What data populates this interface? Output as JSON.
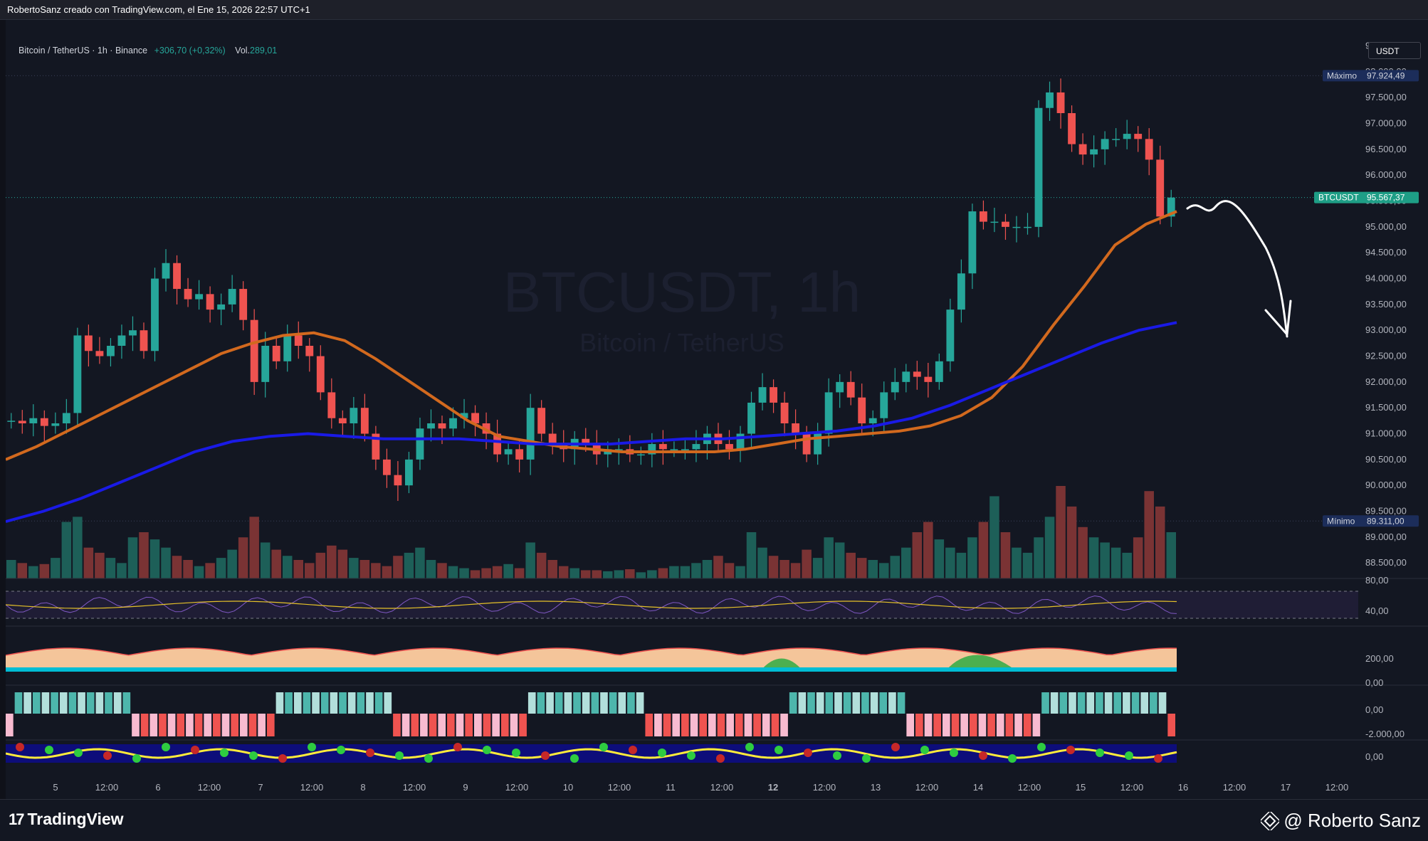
{
  "header": {
    "credit": "RobertoSanz creado con TradingView.com, el Ene 15, 2026 22:57 UTC+1"
  },
  "legend": {
    "symbol": "Bitcoin / TetherUS · 1h · Binance",
    "change": "+306,70 (+0,32%)",
    "volume_label": "Vol.",
    "volume_value": "289,01"
  },
  "currency": "USDT",
  "watermark": {
    "title": "BTCUSDT, 1h",
    "subtitle": "Bitcoin / TetherUS"
  },
  "footer": {
    "brand": "TradingView",
    "author": "@ Roberto Sanz"
  },
  "colors": {
    "up": "#26a69a",
    "down": "#ef5350",
    "ema_orange": "#d2691e",
    "ma_blue": "#1a1ae6",
    "background": "#131722"
  },
  "chart_data": {
    "type": "candlestick",
    "timeframe": "1h",
    "price_axis": {
      "ticks": [
        "98.500,00",
        "98.000,00",
        "97.500,00",
        "97.000,00",
        "96.500,00",
        "96.000,00",
        "95.500,00",
        "95.000,00",
        "94.500,00",
        "94.000,00",
        "93.500,00",
        "93.000,00",
        "92.500,00",
        "92.000,00",
        "91.500,00",
        "91.000,00",
        "90.500,00",
        "90.000,00",
        "89.500,00",
        "89.000,00",
        "88.500,00"
      ],
      "range": [
        88200,
        98700
      ]
    },
    "time_axis": {
      "ticks": [
        "5",
        "12:00",
        "6",
        "12:00",
        "7",
        "12:00",
        "8",
        "12:00",
        "9",
        "12:00",
        "10",
        "12:00",
        "11",
        "12:00",
        "12",
        "12:00",
        "13",
        "12:00",
        "14",
        "12:00",
        "15",
        "12:00",
        "16",
        "12:00",
        "17",
        "12:00"
      ]
    },
    "markers": {
      "max_label": "Máximo",
      "max_value": "97.924,49",
      "max": 97924.49,
      "min_label": "Mínimo",
      "min_value": "89.311,00",
      "min": 89311.0,
      "last_label": "BTCUSDT",
      "last_value": "95.567,37",
      "last": 95567.37
    },
    "close_series": [
      91250,
      91200,
      91300,
      91150,
      91200,
      91400,
      92900,
      92600,
      92500,
      92700,
      92900,
      93000,
      92600,
      94000,
      94300,
      93800,
      93600,
      93700,
      93400,
      93500,
      93800,
      93200,
      92000,
      92700,
      92400,
      92900,
      92700,
      92500,
      91800,
      91300,
      91200,
      91500,
      91000,
      90500,
      90200,
      90000,
      90500,
      91100,
      91200,
      91100,
      91300,
      91400,
      91200,
      91000,
      90600,
      90700,
      90500,
      91500,
      91000,
      90800,
      90700,
      90900,
      90800,
      90600,
      90700,
      90700,
      90600,
      90600,
      90800,
      90700,
      90700,
      90700,
      90800,
      91000,
      90800,
      90700,
      91000,
      91600,
      91900,
      91600,
      91200,
      91000,
      90600,
      91000,
      91800,
      92000,
      91700,
      91200,
      91300,
      91800,
      92000,
      92200,
      92100,
      92000,
      92400,
      93400,
      94100,
      95300,
      95100,
      95100,
      95000,
      95000,
      95000,
      97300,
      97600,
      97200,
      96600,
      96400,
      96500,
      96700,
      96700,
      96800,
      96700,
      96300,
      95200,
      95567
    ],
    "ema_orange": [
      90500,
      90750,
      91050,
      91350,
      91650,
      91950,
      92250,
      92550,
      92750,
      92900,
      92950,
      92800,
      92450,
      92050,
      91650,
      91250,
      90950,
      90850,
      90750,
      90700,
      90650,
      90650,
      90650,
      90650,
      90700,
      90800,
      90900,
      90950,
      91000,
      91050,
      91150,
      91350,
      91700,
      92300,
      93100,
      93850,
      94650,
      95050,
      95300
    ],
    "ma_blue": [
      89300,
      89500,
      89750,
      90050,
      90350,
      90650,
      90850,
      90950,
      91000,
      90950,
      90900,
      90900,
      90900,
      90850,
      90800,
      90800,
      90800,
      90850,
      90900,
      90900,
      90950,
      91000,
      91050,
      91150,
      91300,
      91550,
      91850,
      92150,
      92450,
      92750,
      93000,
      93150
    ],
    "volume_series": [
      18,
      15,
      12,
      14,
      20,
      55,
      60,
      30,
      25,
      20,
      15,
      40,
      45,
      38,
      30,
      22,
      18,
      12,
      15,
      20,
      28,
      40,
      60,
      35,
      28,
      22,
      18,
      15,
      25,
      32,
      28,
      20,
      18,
      15,
      12,
      22,
      25,
      30,
      18,
      15,
      12,
      10,
      8,
      10,
      12,
      14,
      10,
      35,
      25,
      18,
      12,
      10,
      8,
      8,
      7,
      8,
      9,
      6,
      8,
      10,
      12,
      12,
      15,
      18,
      22,
      15,
      12,
      45,
      30,
      22,
      18,
      15,
      28,
      20,
      40,
      35,
      25,
      20,
      18,
      15,
      22,
      30,
      45,
      55,
      38,
      30,
      25,
      40,
      55,
      80,
      45,
      30,
      25,
      40,
      60,
      90,
      70,
      50,
      40,
      35,
      30,
      25,
      40,
      85,
      70,
      45
    ],
    "indicators": {
      "rsi_axis": [
        "80,00",
        "40,00"
      ],
      "macd_axis": [
        "200,00",
        "0,00"
      ],
      "osc_axis": [
        "0,00",
        "-2.000,00"
      ],
      "wave_axis": [
        "0,00"
      ]
    }
  }
}
